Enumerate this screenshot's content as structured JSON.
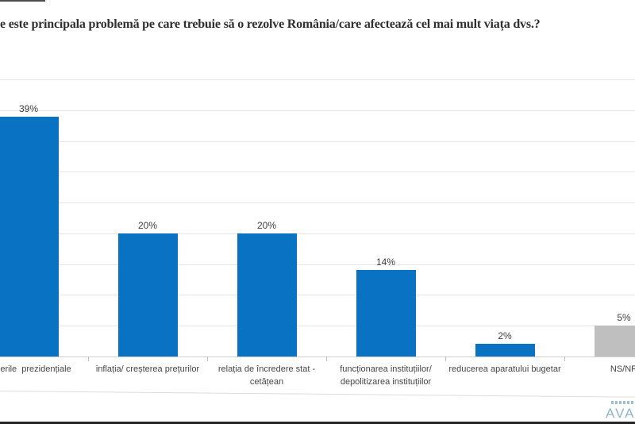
{
  "chart_data": {
    "type": "bar",
    "title": "e este principala problemă pe care trebuie să o rezolve România/care afectează cel mai mult viața dvs.?",
    "title_note": "question text clipped at left edge of image",
    "ylim": [
      0,
      45
    ],
    "gridline_step": 5,
    "grid": "horizontal gridlines every 5%, no visible y-axis tick labels",
    "legend": "none",
    "categories": [
      "erile  prezidențiale",
      "inflația/ creșterea prețurilor",
      "relația de încredere stat - cetățean",
      "funcționarea instituțiilor/ depolitizarea instituțiilor",
      "reducerea aparatului bugetar",
      "NS/NR"
    ],
    "values": [
      39,
      20,
      20,
      14,
      2,
      5
    ],
    "bars": [
      {
        "label_lines": [
          "erile  prezidențiale"
        ],
        "value": 39,
        "value_label": "39%",
        "color": "#0a72c2"
      },
      {
        "label_lines": [
          "inflația/ creșterea prețurilor"
        ],
        "value": 20,
        "value_label": "20%",
        "color": "#0a72c2"
      },
      {
        "label_lines": [
          "relația de încredere stat -",
          "cetățean"
        ],
        "value": 20,
        "value_label": "20%",
        "color": "#0a72c2"
      },
      {
        "label_lines": [
          "funcționarea instituțiilor/",
          "depolitizarea instituțiilor"
        ],
        "value": 14,
        "value_label": "14%",
        "color": "#0a72c2"
      },
      {
        "label_lines": [
          "reducerea aparatului bugetar"
        ],
        "value": 2,
        "value_label": "2%",
        "color": "#0a72c2"
      },
      {
        "label_lines": [
          "NS/NR"
        ],
        "value": 5,
        "value_label": "5%",
        "color": "#bfbfbf"
      }
    ],
    "colors": {
      "bar_blue": "#0a72c2",
      "bar_gray": "#bfbfbf",
      "gridline": "#e5e5e5",
      "axis": "#cfcfcf",
      "tick": "#aec4d0",
      "text": "#454545"
    }
  },
  "logo": {
    "text": "AVAN",
    "note": "logo clipped at right edge; tiny illegible tagline above wordmark",
    "color": "#8fb6c5"
  }
}
